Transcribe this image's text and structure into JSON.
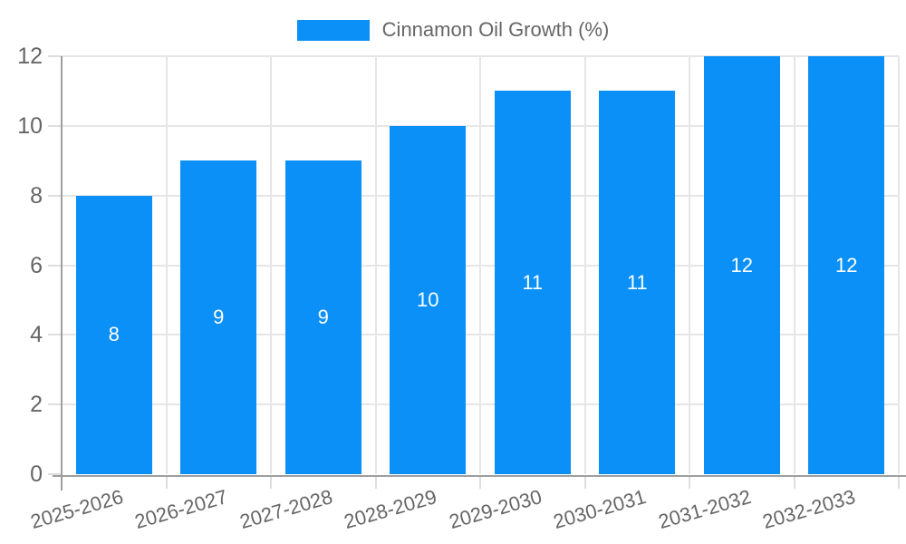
{
  "chart_data": {
    "type": "bar",
    "title": "",
    "legend": "Cinnamon Oil Growth (%)",
    "legend_position": "top",
    "categories": [
      "2025-2026",
      "2026-2027",
      "2027-2028",
      "2028-2029",
      "2029-2030",
      "2030-2031",
      "2031-2032",
      "2032-2033"
    ],
    "values": [
      8,
      9,
      9,
      10,
      11,
      11,
      12,
      12
    ],
    "value_labels_shown": true,
    "xlabel": "",
    "ylabel": "",
    "ylim": [
      0,
      12
    ],
    "yticks": [
      0,
      2,
      4,
      6,
      8,
      10,
      12
    ],
    "grid": true,
    "colors": {
      "bar": "#0a90f7",
      "value_label": "#ffffff",
      "grid": "#e6e6e6",
      "tick": "#dedede",
      "axis": "#9e9e9e",
      "tick_label": "#666666",
      "legend_text": "#666666",
      "background": "#ffffff"
    }
  }
}
